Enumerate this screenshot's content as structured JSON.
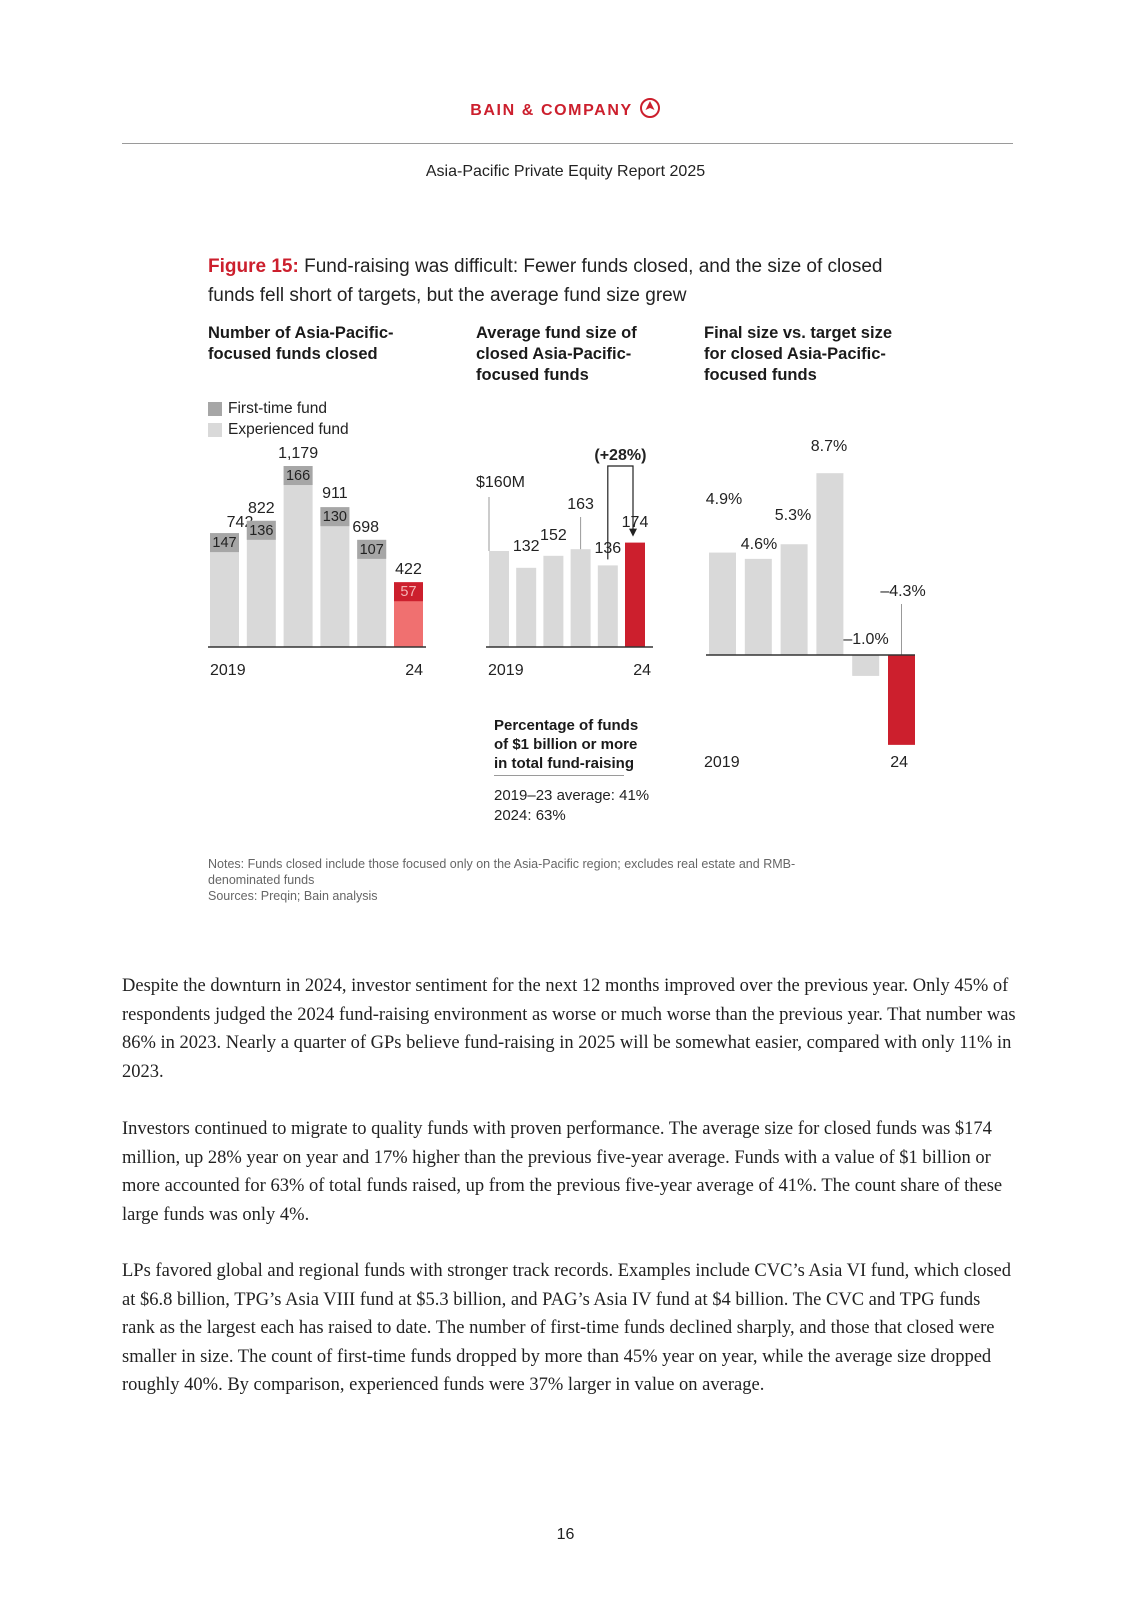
{
  "header": {
    "brand": "BAIN & COMPANY",
    "report_title": "Asia-Pacific Private Equity Report 2025"
  },
  "figure": {
    "label": "Figure 15:",
    "title": " Fund-raising was difficult: Fewer funds closed, and the size of closed funds fell short of targets, but the average fund size grew",
    "colors": {
      "first_time": "#a6a6a6",
      "experienced": "#d9d9d9",
      "highlight": "#cc1f2d",
      "highlight_light": "#f07070"
    },
    "panel1": {
      "title_line1": "Number of Asia-Pacific-",
      "title_line2": "focused funds closed",
      "legend": [
        "First-time fund",
        "Experienced fund"
      ]
    },
    "panel2": {
      "title_line1": "Average fund size of",
      "title_line2": "closed Asia-Pacific-",
      "title_line3": "focused funds",
      "change_label": "(+28%)",
      "pct_title_line1": "Percentage of funds",
      "pct_title_line2": "of $1 billion or more",
      "pct_title_line3": "in total fund-raising",
      "pct_avg": "2019–23 average: 41%",
      "pct_2024": "2024: 63%"
    },
    "panel3": {
      "title_line1": "Final size vs. target size",
      "title_line2": "for closed Asia-Pacific-",
      "title_line3": "focused funds"
    },
    "notes_line1": "Notes: Funds closed include those focused only on the Asia-Pacific region; excludes real estate and RMB-",
    "notes_line2": "denominated funds",
    "sources": "Sources: Preqin; Bain analysis"
  },
  "chart_data": [
    {
      "type": "bar",
      "title": "Number of Asia-Pacific-focused funds closed",
      "categories": [
        "2019",
        "2020",
        "2021",
        "2022",
        "2023",
        "2024"
      ],
      "x_tick_labels": [
        "2019",
        "",
        "",
        "",
        "",
        "24"
      ],
      "series": [
        {
          "name": "First-time fund",
          "values": [
            147,
            136,
            166,
            130,
            107,
            57
          ]
        },
        {
          "name": "Experienced fund",
          "values": [
            595,
            686,
            1013,
            781,
            591,
            365
          ]
        }
      ],
      "totals": [
        742,
        822,
        1179,
        911,
        698,
        422
      ],
      "total_labels": [
        "742",
        "822",
        "1,179",
        "911",
        "698",
        "422"
      ],
      "stacked": true,
      "ylim": [
        0,
        1250
      ],
      "legend": "top-left",
      "grid": false
    },
    {
      "type": "bar",
      "title": "Average fund size of closed Asia-Pacific-focused funds",
      "categories": [
        "2019",
        "2020",
        "2021",
        "2022",
        "2023",
        "2024"
      ],
      "x_tick_labels": [
        "2019",
        "",
        "",
        "",
        "",
        "24"
      ],
      "values": [
        160,
        132,
        152,
        163,
        136,
        174
      ],
      "value_labels": [
        "$160M",
        "132",
        "152",
        "163",
        "136",
        "174"
      ],
      "annotation": "(+28%)",
      "ylim": [
        0,
        300
      ],
      "grid": false
    },
    {
      "type": "bar",
      "title": "Final size vs. target size for closed Asia-Pacific-focused funds",
      "categories": [
        "2019",
        "2020",
        "2021",
        "2022",
        "2023",
        "2024"
      ],
      "x_tick_labels": [
        "2019",
        "",
        "",
        "",
        "",
        "24"
      ],
      "values": [
        4.9,
        4.6,
        5.3,
        8.7,
        -1.0,
        -4.3
      ],
      "value_labels": [
        "4.9%",
        "4.6%",
        "5.3%",
        "8.7%",
        "–1.0%",
        "–4.3%"
      ],
      "ylim": [
        -5,
        10
      ],
      "grid": false
    }
  ],
  "body": {
    "p1": "Despite the downturn in 2024, investor sentiment for the next 12 months improved over the previous year. Only 45% of respondents judged the 2024 fund-raising environment as worse or much worse than the previous year. That number was 86% in 2023. Nearly a quarter of GPs believe fund-raising in 2025 will be somewhat easier, compared with only 11% in 2023.",
    "p2": "Investors continued to migrate to quality funds with proven performance. The average size for closed funds was $174 million, up 28% year on year and 17% higher than the previous five-year average. Funds with a value of $1 billion or more accounted for 63% of total funds raised, up from the previous five-year average of 41%. The count share of these large funds was only 4%.",
    "p3": "LPs favored global and regional funds with stronger track records. Examples include CVC’s Asia VI fund, which closed at $6.8 billion, TPG’s Asia VIII fund at $5.3 billion, and PAG’s Asia IV fund at $4 billion. The CVC and TPG funds rank as the largest each has raised to date. The number of first-time funds declined sharply, and those that closed were smaller in size. The count of first-time funds dropped by more than 45% year on year, while the average size dropped roughly 40%. By comparison, experienced funds were 37% larger in value on average."
  },
  "page_number": "16"
}
